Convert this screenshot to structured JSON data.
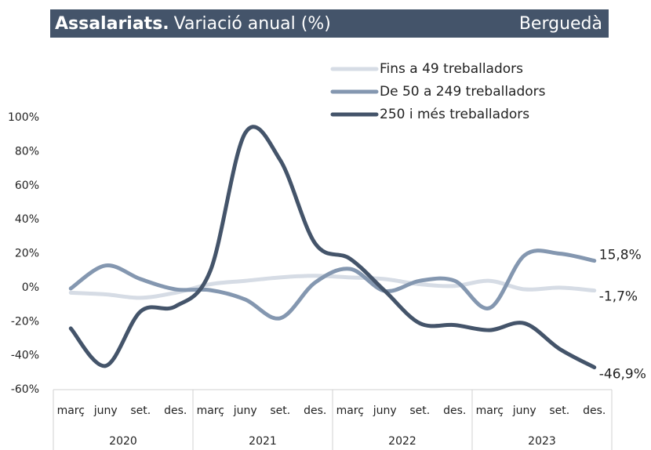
{
  "chart_data": {
    "type": "line",
    "title": "Assalariats.",
    "subtitle": "Variació anual (%)",
    "region": "Berguedà",
    "categories": [
      "març",
      "juny",
      "set.",
      "des.",
      "març",
      "juny",
      "set.",
      "des.",
      "març",
      "juny",
      "set.",
      "des.",
      "març",
      "juny",
      "set.",
      "des."
    ],
    "years": [
      "2020",
      "2021",
      "2022",
      "2023"
    ],
    "series": [
      {
        "name": "Fins a 49 treballadors",
        "color": "#d6dce5",
        "values": [
          -3,
          -4,
          -6,
          -3,
          2,
          4,
          6,
          7,
          6,
          5,
          2,
          1,
          4,
          -1,
          0,
          -1.7
        ],
        "value_labels": [
          null,
          null,
          null,
          null,
          null,
          null,
          null,
          null,
          null,
          null,
          null,
          null,
          null,
          null,
          null,
          "-1,7%"
        ]
      },
      {
        "name": "De 50 a 249 treballadors",
        "color": "#8497b0",
        "values": [
          -0.5,
          13,
          5,
          -1,
          -1.5,
          -7,
          -18,
          3,
          11,
          -2,
          4,
          4,
          -12,
          19,
          20,
          15.8
        ],
        "value_labels": [
          null,
          null,
          null,
          null,
          null,
          null,
          null,
          null,
          null,
          null,
          null,
          null,
          null,
          null,
          null,
          "15,8%"
        ]
      },
      {
        "name": "250 i més treballadors",
        "color": "#44546a",
        "values": [
          -24,
          -46,
          -14,
          -11,
          10,
          91,
          75,
          26,
          17,
          -2,
          -21,
          -22,
          -25,
          -21,
          -36,
          -46.9
        ],
        "value_labels": [
          null,
          null,
          null,
          null,
          null,
          null,
          null,
          null,
          null,
          null,
          null,
          null,
          null,
          null,
          null,
          "-46,9%"
        ]
      }
    ],
    "ylim": [
      -60,
      100
    ],
    "yticks": [
      {
        "value": -60,
        "label": "-60%"
      },
      {
        "value": -40,
        "label": "-40%"
      },
      {
        "value": -20,
        "label": "-20%"
      },
      {
        "value": 0,
        "label": "0%"
      },
      {
        "value": 20,
        "label": "20%"
      },
      {
        "value": 40,
        "label": "40%"
      },
      {
        "value": 60,
        "label": "60%"
      },
      {
        "value": 80,
        "label": "80%"
      },
      {
        "value": 100,
        "label": "100%"
      }
    ],
    "title_color": "#44546a"
  }
}
